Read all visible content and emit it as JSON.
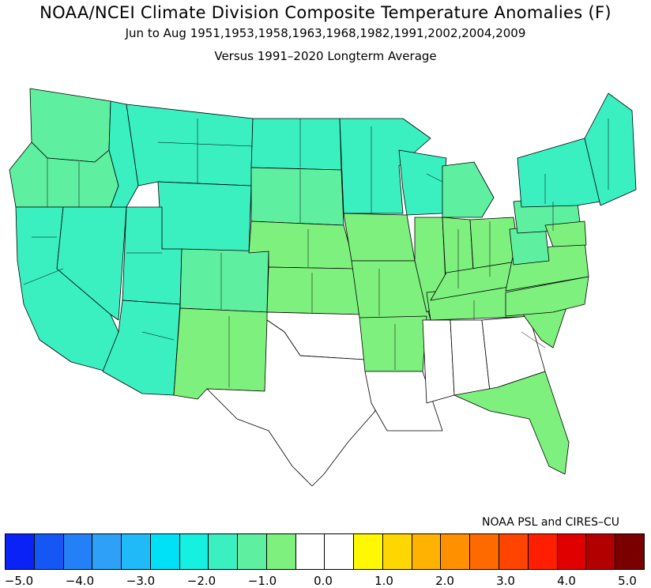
{
  "title": {
    "main": "NOAA/NCEI Climate Division Composite Temperature Anomalies (F)",
    "period": "Jun to Aug  1951,1953,1958,1963,1968,1982,1991,2002,2004,2009",
    "baseline": "Versus 1991–2020 Longterm Average"
  },
  "credit": "NOAA PSL and CIRES–CU",
  "colors": {
    "scale": [
      "#0a22f5",
      "#1457f5",
      "#2480f7",
      "#2ea0f7",
      "#20baf8",
      "#00e1f7",
      "#16f0e0",
      "#3aefc0",
      "#5ef0a0",
      "#7ef07e",
      "#ffffff",
      "#ffffff",
      "#fff800",
      "#ffd700",
      "#ffb300",
      "#ff9000",
      "#ff6a00",
      "#ff4400",
      "#ff1f00",
      "#e00000",
      "#b20000",
      "#7a0000"
    ],
    "state_fill": {
      "minus_1p5_to_1p0": "#7ef07e",
      "minus_2p0_to_1p5": "#5ef0a0",
      "minus_2p5_to_2p0": "#3aefc0",
      "near_normal": "#ffffff",
      "minus_3p5_to_3p0": "#16f0e0"
    }
  },
  "colorbar": {
    "tick_labels": [
      "−5.0",
      "−4.0",
      "−3.0",
      "−2.0",
      "−1.0",
      "0.0",
      "1.0",
      "2.0",
      "3.0",
      "4.0",
      "5.0"
    ]
  }
}
